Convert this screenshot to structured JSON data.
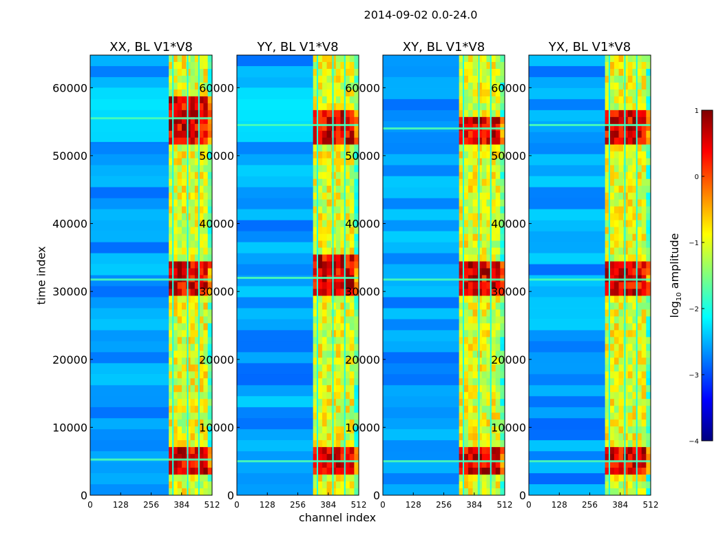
{
  "figure_title": "2014-09-02 0.0-24.0",
  "xlabel": "channel index",
  "ylabel": "time index",
  "colorbar": {
    "label_prefix": "log",
    "label_subscript": "10",
    "label_suffix": " amplitude",
    "ticks": [
      "1",
      "0",
      "−1",
      "−2",
      "−3",
      "−4"
    ],
    "range": [
      -4,
      1
    ],
    "colormap": "jet",
    "colors": [
      "#00007f",
      "#0000ff",
      "#007fff",
      "#00ffff",
      "#7fff7f",
      "#ffff00",
      "#ff7f00",
      "#ff0000",
      "#7f0000"
    ]
  },
  "chart_data": [
    {
      "type": "heatmap",
      "title": "XX, BL V1*V8",
      "xlabel": "channel index",
      "ylabel": "time index",
      "xlim": [
        0,
        512
      ],
      "ylim": [
        0,
        64800
      ],
      "xticks": [
        "0",
        "128",
        "256",
        "384",
        "512"
      ],
      "yticks": [
        "0",
        "10000",
        "20000",
        "30000",
        "40000",
        "50000",
        "60000"
      ],
      "bright_channel_band": [
        330,
        512
      ],
      "strong_time_bands": [
        [
          3000,
          7500
        ],
        [
          29000,
          34500
        ],
        [
          52000,
          59000
        ]
      ],
      "cyan_region": {
        "channels": [
          0,
          330
        ],
        "times": [
          52000,
          60000
        ]
      }
    },
    {
      "type": "heatmap",
      "title": "YY, BL V1*V8",
      "xlabel": "channel index",
      "ylabel": "time index",
      "xlim": [
        0,
        512
      ],
      "ylim": [
        0,
        64800
      ],
      "xticks": [
        "0",
        "128",
        "256",
        "384",
        "512"
      ],
      "yticks": [
        "0",
        "10000",
        "20000",
        "30000",
        "40000",
        "50000",
        "60000"
      ],
      "bright_channel_band": [
        320,
        512
      ],
      "strong_time_bands": [
        [
          3000,
          7000
        ],
        [
          29000,
          35000
        ],
        [
          52000,
          57000
        ]
      ],
      "cyan_region": {
        "channels": [
          0,
          320
        ],
        "times": [
          52000,
          60000
        ]
      }
    },
    {
      "type": "heatmap",
      "title": "XY, BL V1*V8",
      "xlabel": "channel index",
      "ylabel": "time index",
      "xlim": [
        0,
        512
      ],
      "ylim": [
        0,
        64800
      ],
      "xticks": [
        "0",
        "128",
        "256",
        "384",
        "512"
      ],
      "yticks": [
        "0",
        "10000",
        "20000",
        "30000",
        "40000",
        "50000",
        "60000"
      ],
      "bright_channel_band": [
        320,
        512
      ],
      "strong_time_bands": [
        [
          3000,
          7000
        ],
        [
          29000,
          34500
        ],
        [
          52000,
          56000
        ]
      ]
    },
    {
      "type": "heatmap",
      "title": "YX, BL V1*V8",
      "xlabel": "channel index",
      "ylabel": "time index",
      "xlim": [
        0,
        512
      ],
      "ylim": [
        0,
        64800
      ],
      "xticks": [
        "0",
        "128",
        "256",
        "384",
        "512"
      ],
      "yticks": [
        "0",
        "10000",
        "20000",
        "30000",
        "40000",
        "50000",
        "60000"
      ],
      "bright_channel_band": [
        320,
        512
      ],
      "strong_time_bands": [
        [
          3000,
          7000
        ],
        [
          29000,
          34500
        ],
        [
          52000,
          57000
        ]
      ]
    }
  ]
}
